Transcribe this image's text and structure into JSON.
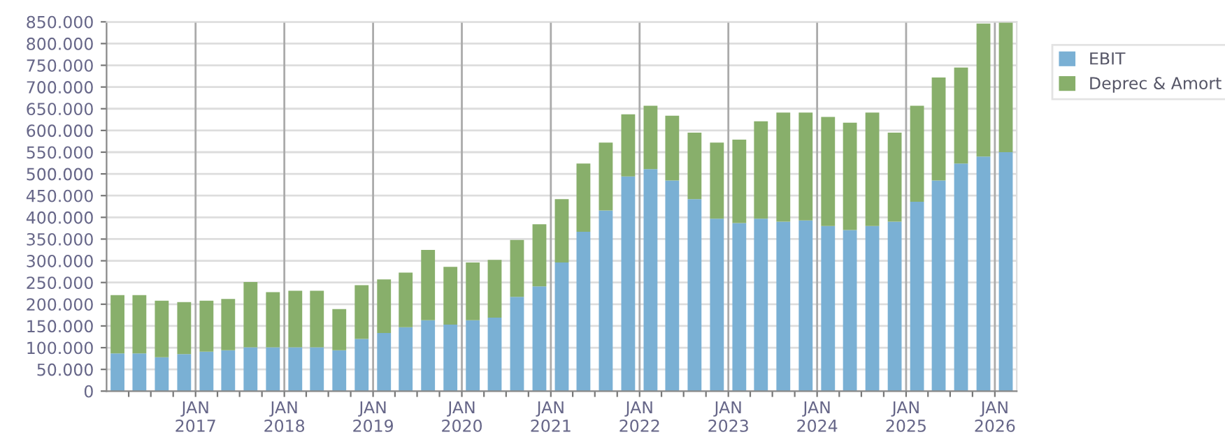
{
  "chart_data": {
    "type": "bar",
    "stacked": true,
    "x": [
      "2016-02-15",
      "2016-05-15",
      "2016-08-15",
      "2016-11-15",
      "2017-02-15",
      "2017-05-15",
      "2017-08-15",
      "2017-11-15",
      "2018-02-15",
      "2018-05-15",
      "2018-08-15",
      "2018-11-15",
      "2019-02-15",
      "2019-05-15",
      "2019-08-15",
      "2019-11-15",
      "2020-02-15",
      "2020-05-15",
      "2020-08-15",
      "2020-11-15",
      "2021-02-15",
      "2021-05-15",
      "2021-08-15",
      "2021-11-15",
      "2022-02-15",
      "2022-05-15",
      "2022-08-15",
      "2022-11-15",
      "2023-02-15",
      "2023-05-15",
      "2023-08-15",
      "2023-11-15",
      "2024-02-15",
      "2024-05-15",
      "2024-08-15",
      "2024-11-15",
      "2025-02-15",
      "2025-05-15",
      "2025-08-15",
      "2025-11-15",
      "2026-02-15"
    ],
    "series": [
      {
        "name": "EBIT",
        "color": "#7ab0d4",
        "values": [
          87000,
          87000,
          78000,
          85000,
          91000,
          94000,
          101000,
          101000,
          101000,
          101000,
          94000,
          120000,
          134000,
          147000,
          163000,
          153000,
          163000,
          169000,
          217000,
          241000,
          296000,
          367000,
          416000,
          494000,
          511000,
          485000,
          442000,
          397000,
          387000,
          397000,
          390000,
          393000,
          380000,
          371000,
          380000,
          390000,
          436000,
          485000,
          524000,
          540000,
          550000
        ]
      },
      {
        "name": "Deprec & Amort",
        "color": "#88af6b",
        "values": [
          134000,
          134000,
          130000,
          120000,
          117000,
          118000,
          150000,
          127000,
          130000,
          130000,
          95000,
          124000,
          123000,
          126000,
          162000,
          133000,
          133000,
          133000,
          131000,
          143000,
          146000,
          157000,
          156000,
          143000,
          146000,
          149000,
          153000,
          175000,
          192000,
          224000,
          251000,
          248000,
          251000,
          247000,
          261000,
          205000,
          221000,
          237000,
          221000,
          306000,
          300000
        ]
      }
    ],
    "xlim": [
      "2016-01-01",
      "2026-04-01"
    ],
    "xticks": [
      {
        "value": "2016-04-01",
        "label": null
      },
      {
        "value": "2016-07-01",
        "label": null
      },
      {
        "value": "2016-10-01",
        "label": null
      },
      {
        "value": "2017-01-01",
        "label": "JAN\n2017"
      },
      {
        "value": "2017-04-01",
        "label": null
      },
      {
        "value": "2017-07-01",
        "label": null
      },
      {
        "value": "2017-10-01",
        "label": null
      },
      {
        "value": "2018-01-01",
        "label": "JAN\n2018"
      },
      {
        "value": "2018-04-01",
        "label": null
      },
      {
        "value": "2018-07-01",
        "label": null
      },
      {
        "value": "2018-10-01",
        "label": null
      },
      {
        "value": "2019-01-01",
        "label": "JAN\n2019"
      },
      {
        "value": "2019-04-01",
        "label": null
      },
      {
        "value": "2019-07-01",
        "label": null
      },
      {
        "value": "2019-10-01",
        "label": null
      },
      {
        "value": "2020-01-01",
        "label": "JAN\n2020"
      },
      {
        "value": "2020-04-01",
        "label": null
      },
      {
        "value": "2020-07-01",
        "label": null
      },
      {
        "value": "2020-10-01",
        "label": null
      },
      {
        "value": "2021-01-01",
        "label": "JAN\n2021"
      },
      {
        "value": "2021-04-01",
        "label": null
      },
      {
        "value": "2021-07-01",
        "label": null
      },
      {
        "value": "2021-10-01",
        "label": null
      },
      {
        "value": "2022-01-01",
        "label": "JAN\n2022"
      },
      {
        "value": "2022-04-01",
        "label": null
      },
      {
        "value": "2022-07-01",
        "label": null
      },
      {
        "value": "2022-10-01",
        "label": null
      },
      {
        "value": "2023-01-01",
        "label": "JAN\n2023"
      },
      {
        "value": "2023-04-01",
        "label": null
      },
      {
        "value": "2023-07-01",
        "label": null
      },
      {
        "value": "2023-10-01",
        "label": null
      },
      {
        "value": "2024-01-01",
        "label": "JAN\n2024"
      },
      {
        "value": "2024-04-01",
        "label": null
      },
      {
        "value": "2024-07-01",
        "label": null
      },
      {
        "value": "2024-10-01",
        "label": null
      },
      {
        "value": "2025-01-01",
        "label": "JAN\n2025"
      },
      {
        "value": "2025-04-01",
        "label": null
      },
      {
        "value": "2025-07-01",
        "label": null
      },
      {
        "value": "2025-10-01",
        "label": null
      },
      {
        "value": "2026-01-01",
        "label": "JAN\n2026"
      }
    ],
    "ylim": [
      0,
      850000
    ],
    "yticks": [
      0,
      {
        "value": 50000,
        "label": "50.000"
      },
      {
        "value": 100000,
        "label": "100.000"
      },
      {
        "value": 150000,
        "label": "150.000"
      },
      {
        "value": 200000,
        "label": "200.000"
      },
      {
        "value": 250000,
        "label": "250.000"
      },
      {
        "value": 300000,
        "label": "300.000"
      },
      {
        "value": 350000,
        "label": "350.000"
      },
      {
        "value": 400000,
        "label": "400.000"
      },
      {
        "value": 450000,
        "label": "450.000"
      },
      {
        "value": 500000,
        "label": "500.000"
      },
      {
        "value": 550000,
        "label": "550.000"
      },
      {
        "value": 600000,
        "label": "600.000"
      },
      {
        "value": 650000,
        "label": "650.000"
      },
      {
        "value": 700000,
        "label": "700.000"
      },
      {
        "value": 750000,
        "label": "750.000"
      },
      {
        "value": 800000,
        "label": "800.000"
      },
      {
        "value": 850000,
        "label": "850.000"
      }
    ],
    "grid": true,
    "legend": "top right"
  }
}
